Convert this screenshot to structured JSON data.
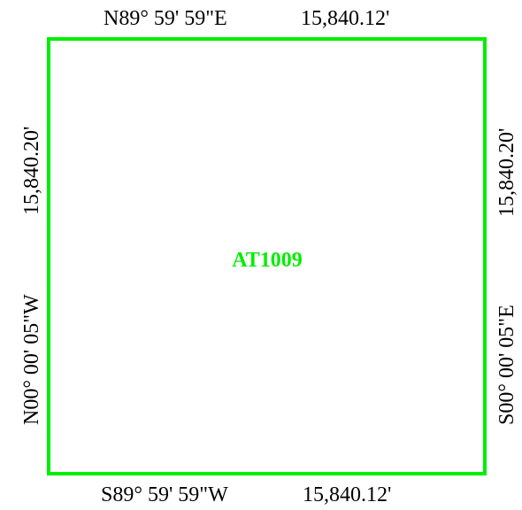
{
  "parcel": {
    "id": "AT1009",
    "color": "#00ee00"
  },
  "boundaries": {
    "north": {
      "bearing": "N89° 59' 59\"E",
      "distance": "15,840.12'"
    },
    "south": {
      "bearing": "S89° 59' 59\"W",
      "distance": "15,840.12'"
    },
    "west": {
      "bearing": "N00° 00' 05\"W",
      "distance": "15,840.20'"
    },
    "east": {
      "bearing": "S00° 00' 05\"E",
      "distance": "15,840.20'"
    }
  }
}
